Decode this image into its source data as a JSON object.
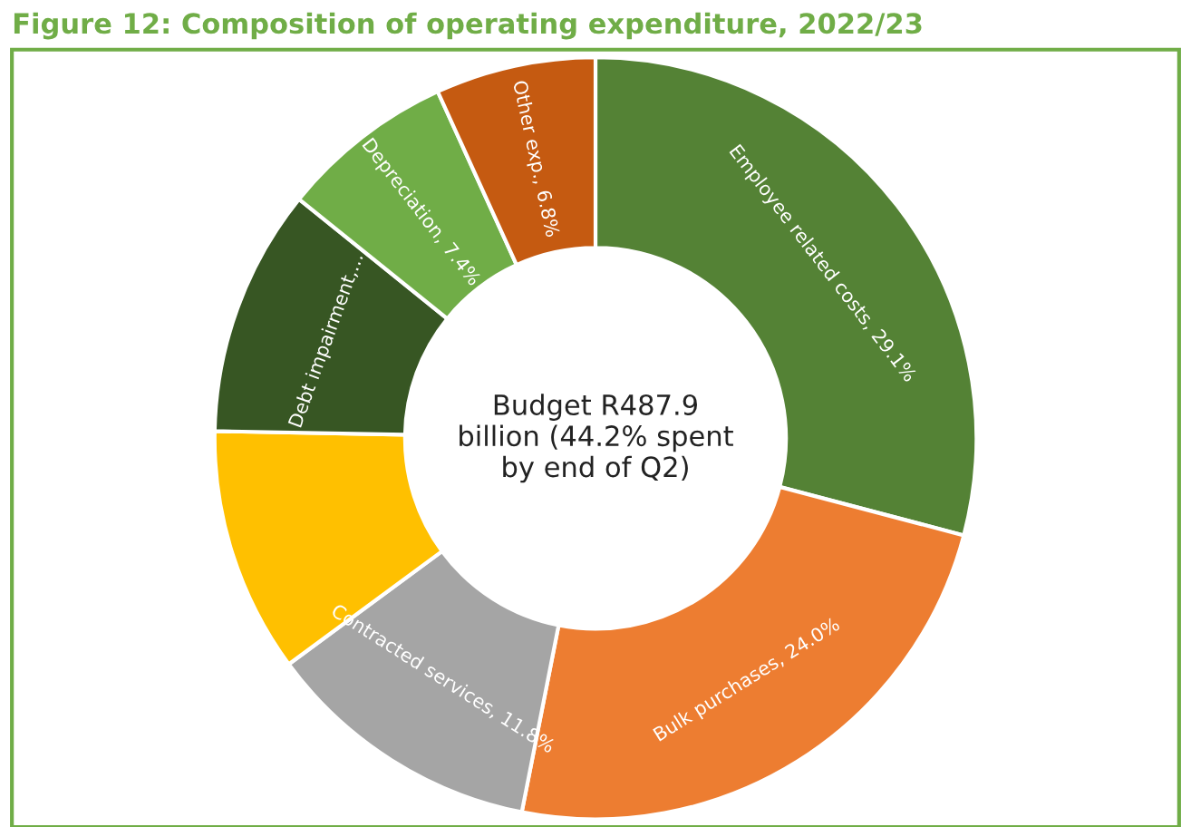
{
  "chart_data": {
    "type": "donut",
    "title": "Figure 12: Composition of operating expenditure, 2022/23",
    "categories": [
      "Employee related costs",
      "Bulk purchases",
      "Contracted services",
      null,
      "Debt impairment,...",
      "Depreciation",
      "Other exp."
    ],
    "values": [
      29.1,
      24.0,
      11.8,
      10.4,
      10.5,
      7.4,
      6.8
    ],
    "value_labels": [
      "29.1%",
      "24.0%",
      "11.8%",
      null,
      null,
      "7.4%",
      "6.8%"
    ],
    "colors": [
      "#548235",
      "#ed7d31",
      "#a5a5a5",
      "#ffc000",
      "#375623",
      "#70ad47",
      "#c55a11"
    ],
    "annotations": [
      "Budget R487.9\nbillion (44.2% spent\nby end of Q2)"
    ],
    "legend": false
  }
}
